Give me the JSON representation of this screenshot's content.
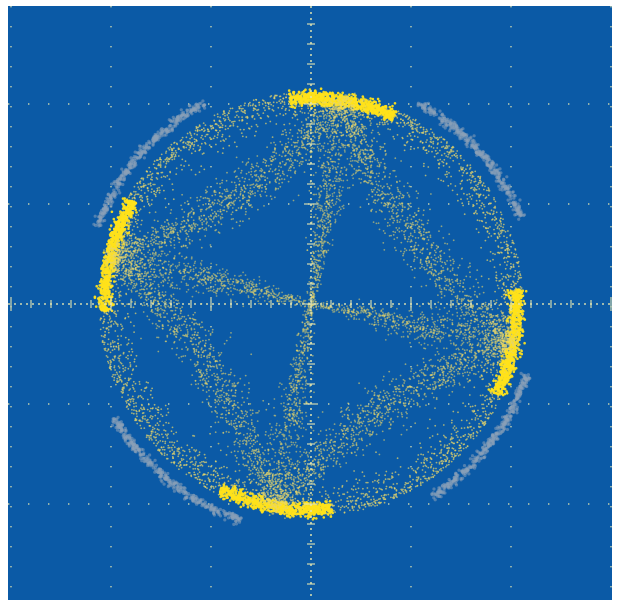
{
  "display": {
    "type": "oscilloscope-xy-constellation",
    "background_color": "#0b5aa6",
    "trace_color": "#ffe21a",
    "trace_color_dim": "#e8d66a",
    "outer_ring_color": "#8aa0b8",
    "graticule_color": "#e6e7b0",
    "graticule": {
      "divisions_x": 6,
      "divisions_y": 6,
      "minor_ticks_per_division": 5
    }
  }
}
